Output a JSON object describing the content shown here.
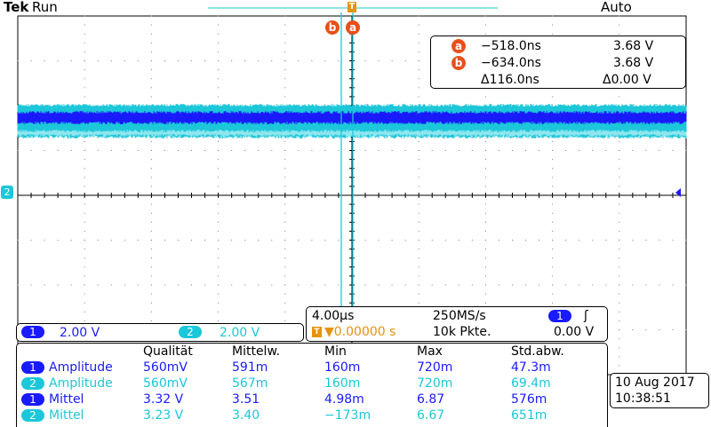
{
  "header": {
    "brand": "Tek",
    "status": "Run",
    "mode": "Auto"
  },
  "trigger_marker": "T",
  "cursors": {
    "a_label": "a",
    "b_label": "b",
    "a_time": "−518.0ns",
    "a_volt": "3.68 V",
    "b_time": "−634.0ns",
    "b_volt": "3.68 V",
    "delta_time": "Δ116.0ns",
    "delta_volt": "Δ0.00 V"
  },
  "channel2_ground_marker": "2",
  "channels": [
    {
      "num": "1",
      "scale": "2.00 V"
    },
    {
      "num": "2",
      "scale": "2.00 V"
    }
  ],
  "timebase": {
    "time_div": "4.00µs",
    "sample_rate": "250MS/s",
    "trigger_pos": "▼0.00000 s",
    "record_length": "10k Pkte.",
    "trigger_source": "1",
    "trigger_slope_icon": "ʃ",
    "trigger_level": "0.00 V"
  },
  "measurements": {
    "headers": [
      "Qualität",
      "Mittelw.",
      "Min",
      "Max",
      "Std.abw."
    ],
    "rows": [
      {
        "ch": "1",
        "name": "Amplitude",
        "values": [
          "560mV",
          "591m",
          "160m",
          "720m",
          "47.3m"
        ]
      },
      {
        "ch": "2",
        "name": "Amplitude",
        "values": [
          "560mV",
          "567m",
          "160m",
          "720m",
          "69.4m"
        ]
      },
      {
        "ch": "1",
        "name": "Mittel",
        "values": [
          "3.32 V",
          "3.51",
          "4.98m",
          "6.87",
          "576m"
        ]
      },
      {
        "ch": "2",
        "name": "Mittel",
        "values": [
          "3.23 V",
          "3.40",
          "−173m",
          "6.67",
          "651m"
        ]
      }
    ]
  },
  "datetime": {
    "date": "10 Aug 2017",
    "time": "10:38:51"
  },
  "colors": {
    "ch1": "#1a1aff",
    "ch2": "#1cc7d9",
    "trigger": "#e8920a",
    "cursor": "#e8501a",
    "ch2_trace": "#1a8f8a"
  }
}
